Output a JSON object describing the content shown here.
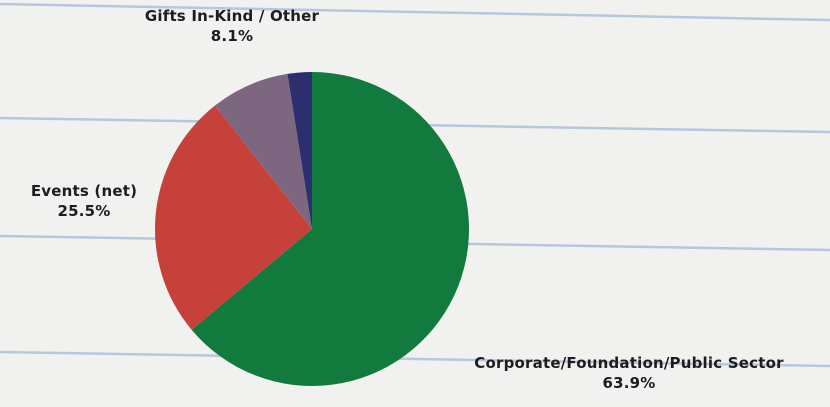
{
  "chart_data": {
    "type": "pie",
    "title": "",
    "slices": [
      {
        "label": "Corporate/Foundation/Public Sector",
        "value": 63.9,
        "value_label": "63.9%",
        "color": "#137a3e"
      },
      {
        "label": "Events (net)",
        "value": 25.5,
        "value_label": "25.5%",
        "color": "#c5413a"
      },
      {
        "label": "Gifts In-Kind / Other",
        "value": 8.1,
        "value_label": "8.1%",
        "color": "#7d6680"
      },
      {
        "label": "",
        "value": 2.5,
        "value_label": "",
        "color": "#2b2f6e"
      }
    ],
    "start_angle": "12 o'clock",
    "direction": "clockwise",
    "background": "lined notebook paper",
    "legend": "none"
  }
}
